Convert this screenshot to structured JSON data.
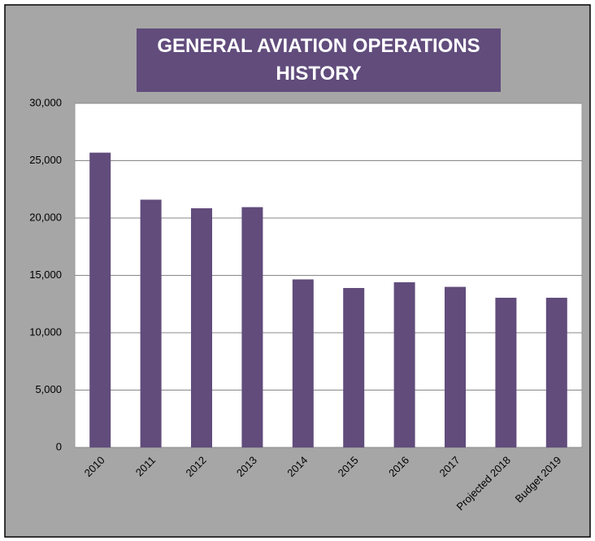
{
  "chart_data": {
    "type": "bar",
    "title": "GENERAL AVIATION OPERATIONS HISTORY",
    "categories": [
      "2010",
      "2011",
      "2012",
      "2013",
      "2014",
      "2015",
      "2016",
      "2017",
      "Projected 2018",
      "Budget 2019"
    ],
    "values": [
      25700,
      21600,
      20850,
      20950,
      14650,
      13900,
      14400,
      14000,
      13050,
      13050
    ],
    "color": "#614c7c",
    "ylim": [
      0,
      30000
    ],
    "yticks": [
      0,
      {
        "value": 5000,
        "label": "5,000"
      },
      {
        "value": 10000,
        "label": "10,000"
      },
      {
        "value": 15000,
        "label": "15,000"
      },
      {
        "value": 20000,
        "label": "20,000"
      },
      {
        "value": 25000,
        "label": "25,000"
      },
      {
        "value": 30000,
        "label": "30,000"
      }
    ],
    "grid": true
  }
}
